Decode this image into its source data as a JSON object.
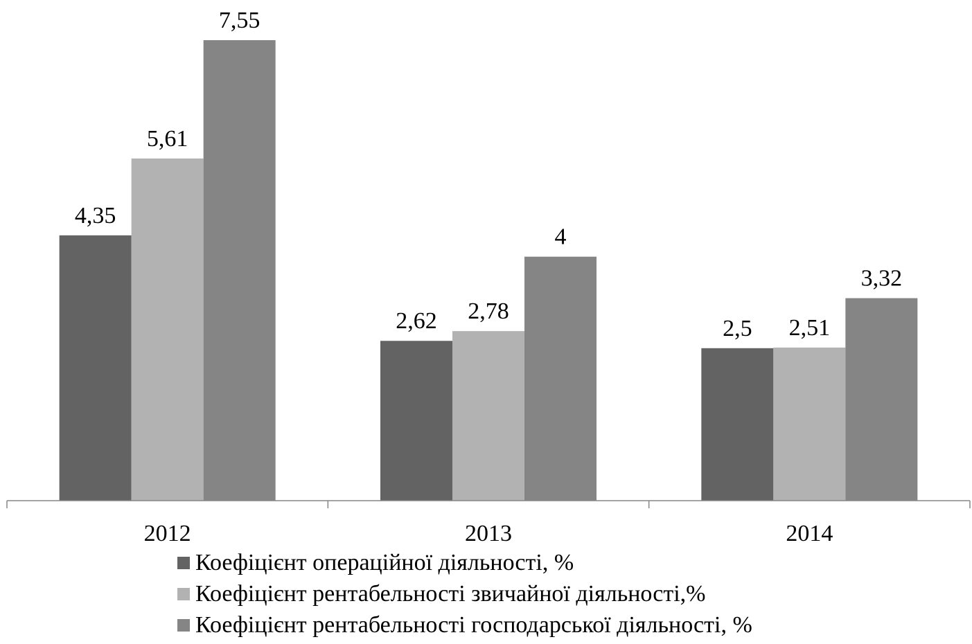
{
  "chart_data": {
    "type": "bar",
    "categories": [
      "2012",
      "2013",
      "2014"
    ],
    "series": [
      {
        "name": "Коефіцієнт операційної діяльності, %",
        "values": [
          4.35,
          2.62,
          2.5
        ],
        "labels": [
          "4,35",
          "2,62",
          "2,5"
        ],
        "color": "#636363"
      },
      {
        "name": "Коефіцієнт рентабельності звичайної діяльності,%",
        "values": [
          5.61,
          2.78,
          2.51
        ],
        "labels": [
          "5,61",
          "2,78",
          "2,51"
        ],
        "color": "#b2b2b2"
      },
      {
        "name": "Коефіцієнт рентабельності господарської діяльності, %",
        "values": [
          7.55,
          4,
          3.32
        ],
        "labels": [
          "7,55",
          "4",
          "3,32"
        ],
        "color": "#858585"
      }
    ],
    "ylim": [
      0,
      7.55
    ],
    "grid": false,
    "legend_position": "bottom",
    "axis_color": "#868686"
  }
}
